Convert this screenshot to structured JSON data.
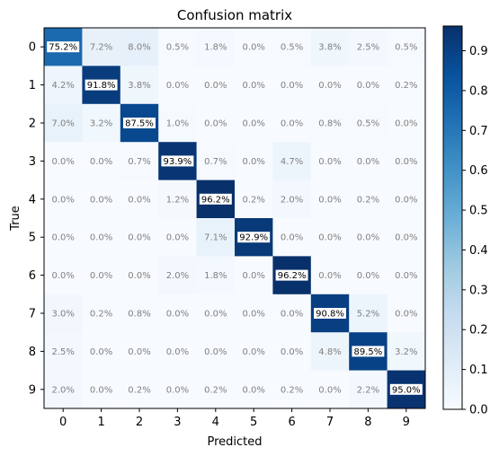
{
  "chart_data": {
    "type": "heatmap",
    "title": "Confusion matrix",
    "xlabel": "Predicted",
    "ylabel": "True",
    "x_categories": [
      "0",
      "1",
      "2",
      "3",
      "4",
      "5",
      "6",
      "7",
      "8",
      "9"
    ],
    "y_categories": [
      "0",
      "1",
      "2",
      "3",
      "4",
      "5",
      "6",
      "7",
      "8",
      "9"
    ],
    "values": [
      [
        0.752,
        0.072,
        0.08,
        0.005,
        0.018,
        0.0,
        0.005,
        0.038,
        0.025,
        0.005
      ],
      [
        0.042,
        0.918,
        0.038,
        0.0,
        0.0,
        0.0,
        0.0,
        0.0,
        0.0,
        0.002
      ],
      [
        0.07,
        0.032,
        0.875,
        0.01,
        0.0,
        0.0,
        0.0,
        0.008,
        0.005,
        0.0
      ],
      [
        0.0,
        0.0,
        0.007,
        0.939,
        0.007,
        0.0,
        0.047,
        0.0,
        0.0,
        0.0
      ],
      [
        0.0,
        0.0,
        0.0,
        0.012,
        0.962,
        0.002,
        0.02,
        0.0,
        0.002,
        0.0
      ],
      [
        0.0,
        0.0,
        0.0,
        0.0,
        0.071,
        0.929,
        0.0,
        0.0,
        0.0,
        0.0
      ],
      [
        0.0,
        0.0,
        0.0,
        0.02,
        0.018,
        0.0,
        0.962,
        0.0,
        0.0,
        0.0
      ],
      [
        0.03,
        0.002,
        0.008,
        0.0,
        0.0,
        0.0,
        0.0,
        0.908,
        0.052,
        0.0
      ],
      [
        0.025,
        0.0,
        0.0,
        0.0,
        0.0,
        0.0,
        0.0,
        0.048,
        0.895,
        0.032
      ],
      [
        0.02,
        0.0,
        0.002,
        0.0,
        0.002,
        0.0,
        0.002,
        0.0,
        0.022,
        0.95
      ]
    ],
    "labels": [
      [
        "75.2%",
        "7.2%",
        "8.0%",
        "0.5%",
        "1.8%",
        "0.0%",
        "0.5%",
        "3.8%",
        "2.5%",
        "0.5%"
      ],
      [
        "4.2%",
        "91.8%",
        "3.8%",
        "0.0%",
        "0.0%",
        "0.0%",
        "0.0%",
        "0.0%",
        "0.0%",
        "0.2%"
      ],
      [
        "7.0%",
        "3.2%",
        "87.5%",
        "1.0%",
        "0.0%",
        "0.0%",
        "0.0%",
        "0.8%",
        "0.5%",
        "0.0%"
      ],
      [
        "0.0%",
        "0.0%",
        "0.7%",
        "93.9%",
        "0.7%",
        "0.0%",
        "4.7%",
        "0.0%",
        "0.0%",
        "0.0%"
      ],
      [
        "0.0%",
        "0.0%",
        "0.0%",
        "1.2%",
        "96.2%",
        "0.2%",
        "2.0%",
        "0.0%",
        "0.2%",
        "0.0%"
      ],
      [
        "0.0%",
        "0.0%",
        "0.0%",
        "0.0%",
        "7.1%",
        "92.9%",
        "0.0%",
        "0.0%",
        "0.0%",
        "0.0%"
      ],
      [
        "0.0%",
        "0.0%",
        "0.0%",
        "2.0%",
        "1.8%",
        "0.0%",
        "96.2%",
        "0.0%",
        "0.0%",
        "0.0%"
      ],
      [
        "3.0%",
        "0.2%",
        "0.8%",
        "0.0%",
        "0.0%",
        "0.0%",
        "0.0%",
        "90.8%",
        "5.2%",
        "0.0%"
      ],
      [
        "2.5%",
        "0.0%",
        "0.0%",
        "0.0%",
        "0.0%",
        "0.0%",
        "0.0%",
        "4.8%",
        "89.5%",
        "3.2%"
      ],
      [
        "2.0%",
        "0.0%",
        "0.2%",
        "0.0%",
        "0.2%",
        "0.0%",
        "0.2%",
        "0.0%",
        "2.2%",
        "95.0%"
      ]
    ],
    "colorbar": {
      "colormap": "Blues",
      "range": [
        0.0,
        0.962
      ],
      "ticks": [
        0.0,
        0.1,
        0.2,
        0.3,
        0.4,
        0.5,
        0.6,
        0.7,
        0.8,
        0.9
      ],
      "tick_labels": [
        "0.0",
        "0.1",
        "0.2",
        "0.3",
        "0.4",
        "0.5",
        "0.6",
        "0.7",
        "0.8",
        "0.9"
      ]
    },
    "highlight_text_color": "#000000",
    "highlight_box_color": "#ffffff",
    "muted_text_color": "#808080"
  }
}
